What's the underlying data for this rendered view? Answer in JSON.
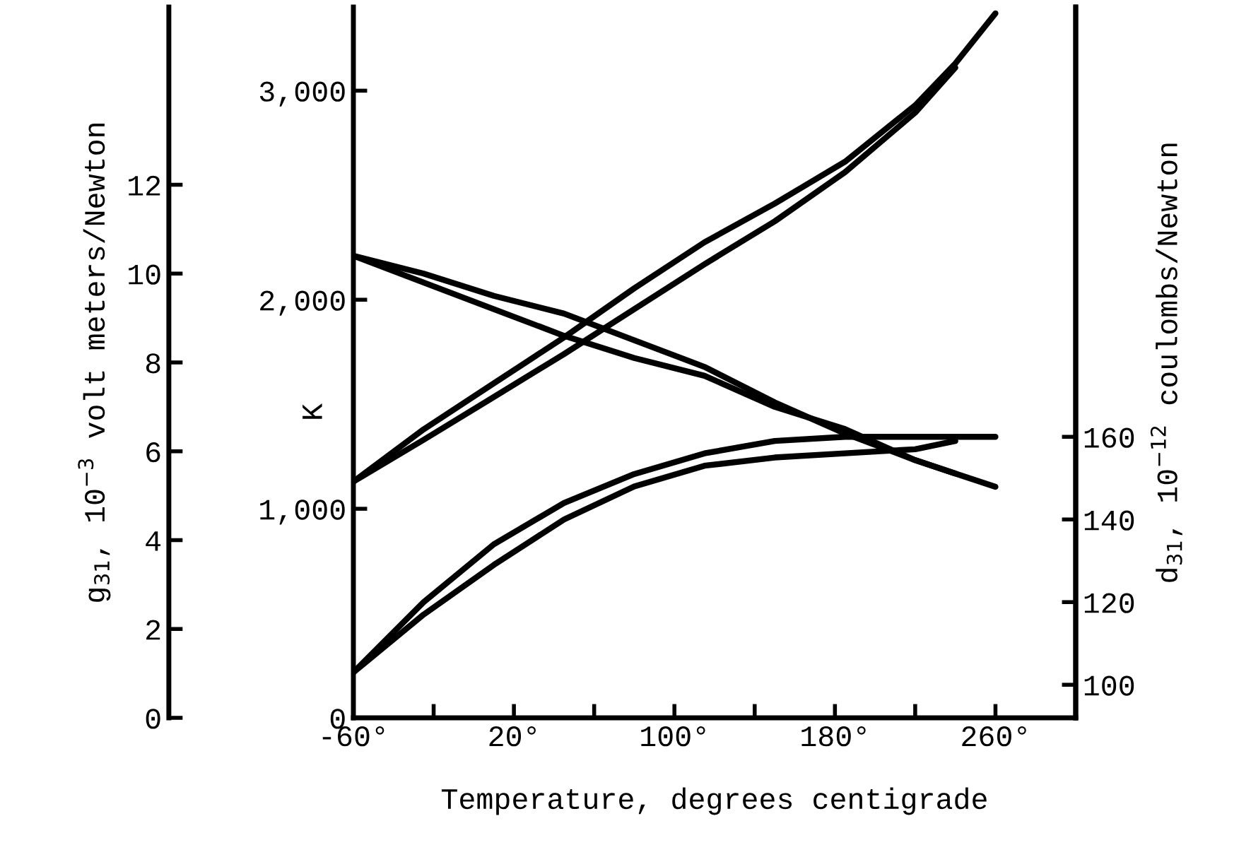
{
  "chart_data": {
    "type": "line",
    "xlabel": "Temperature, degrees centigrade",
    "ylabel": "K",
    "y2label": "d$_{31}$, 10$^{−12}$ coulombs/Newton",
    "y3label": "g$_{31}$, 10$^{−3}$ volt meters/Newton",
    "x": [
      -60,
      -25,
      10,
      45,
      80,
      115,
      150,
      185,
      220,
      240,
      260
    ],
    "xlim": [
      -60,
      300
    ],
    "xticks": [
      {
        "value": -60,
        "label": "-60°"
      },
      {
        "value": -20,
        "label": null
      },
      {
        "value": 20,
        "label": "20°"
      },
      {
        "value": 60,
        "label": null
      },
      {
        "value": 100,
        "label": "100°"
      },
      {
        "value": 140,
        "label": null
      },
      {
        "value": 180,
        "label": "180°"
      },
      {
        "value": 220,
        "label": null
      },
      {
        "value": 260,
        "label": "260°"
      }
    ],
    "ylim": [
      0,
      3400
    ],
    "yticks": [
      0,
      {
        "value": 1000,
        "label": "1,000"
      },
      {
        "value": 2000,
        "label": "2,000"
      },
      {
        "value": 3000,
        "label": "3,000"
      }
    ],
    "y2lim": [
      92,
      264
    ],
    "y2ticks": [
      100,
      120,
      140,
      160
    ],
    "y3lim": [
      0,
      16
    ],
    "y3ticks": [
      0,
      2,
      4,
      6,
      8,
      10,
      12
    ],
    "grid": false,
    "legend": false,
    "marker": "none",
    "line_style": "solid",
    "series": [
      {
        "color": "#000000",
        "axis": "y",
        "values": [
          1130,
          1380,
          1600,
          1820,
          2055,
          2275,
          2460,
          2660,
          2930,
          3130,
          3370
        ]
      },
      {
        "color": "#000000",
        "axis": "y",
        "values": [
          1130,
          1330,
          1535,
          1740,
          1955,
          2170,
          2375,
          2610,
          2895,
          3110,
          null
        ]
      },
      {
        "color": "#000000",
        "axis": "y3",
        "values": [
          10.4,
          10.0,
          9.5,
          9.1,
          8.5,
          7.9,
          7.1,
          6.4,
          5.8,
          5.5,
          5.2
        ]
      },
      {
        "color": "#000000",
        "axis": "y3",
        "values": [
          10.4,
          9.8,
          9.2,
          8.6,
          8.1,
          7.7,
          7.0,
          6.5,
          5.8,
          5.5,
          null
        ]
      },
      {
        "color": "#000000",
        "axis": "y2",
        "values": [
          103,
          120,
          134,
          144,
          151,
          156,
          159,
          160,
          160,
          160,
          160
        ]
      },
      {
        "color": "#000000",
        "axis": "y2",
        "values": [
          103,
          117,
          129,
          140,
          148,
          153,
          155,
          156,
          157,
          159,
          null
        ]
      }
    ]
  }
}
